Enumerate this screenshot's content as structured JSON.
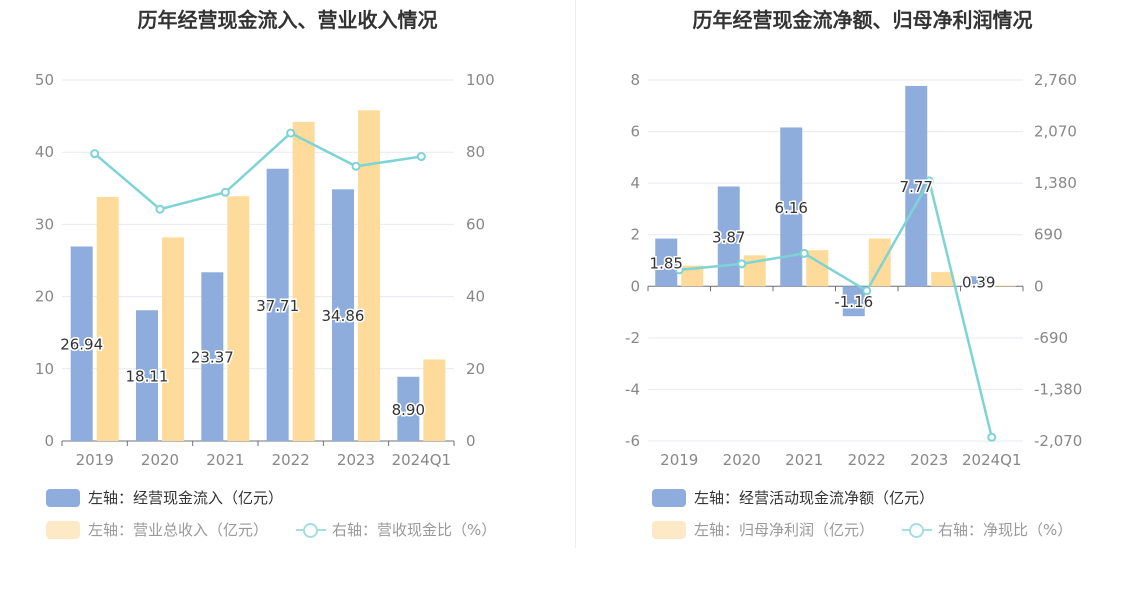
{
  "colors": {
    "bar_primary": "#8eaddc",
    "bar_secondary": "#fedb9b",
    "line": "#7ed3d6",
    "legend_active_text": "#333333",
    "legend_muted_text": "#999999",
    "legend_muted_swatch": "#fde9c6",
    "grid": "#e6e9f0",
    "axis_label": "#888888"
  },
  "chart_data": [
    {
      "type": "bar",
      "title": "历年经营现金流入、营业收入情况",
      "categories": [
        "2019",
        "2020",
        "2021",
        "2022",
        "2023",
        "2024Q1"
      ],
      "y_left": {
        "min": 0,
        "max": 50,
        "ticks": [
          "0",
          "10",
          "20",
          "30",
          "40",
          "50"
        ]
      },
      "y_right": {
        "min": 0,
        "max": 100,
        "ticks": [
          "0",
          "20",
          "40",
          "60",
          "80",
          "100"
        ]
      },
      "series": [
        {
          "name": "左轴：经营现金流入（亿元）",
          "type": "bar",
          "axis": "left",
          "values": [
            26.94,
            18.11,
            23.37,
            37.71,
            34.86,
            8.9
          ],
          "labels": [
            "26.94",
            "18.11",
            "23.37",
            "37.71",
            "34.86",
            "8.90"
          ]
        },
        {
          "name": "左轴：营业总收入（亿元）",
          "type": "bar",
          "axis": "left",
          "values": [
            33.8,
            28.2,
            33.9,
            44.2,
            45.8,
            11.3
          ]
        },
        {
          "name": "右轴：营收现金比（%）",
          "type": "line",
          "axis": "right",
          "values": [
            79.6,
            64.2,
            68.9,
            85.3,
            76.1,
            78.8
          ]
        }
      ],
      "legend": [
        {
          "label": "左轴：经营现金流入（亿元）",
          "kind": "bar",
          "state": "active"
        },
        {
          "label": "左轴：营业总收入（亿元）",
          "kind": "bar",
          "state": "muted"
        },
        {
          "label": "右轴：营收现金比（%）",
          "kind": "line",
          "state": "muted"
        }
      ]
    },
    {
      "type": "bar",
      "title": "历年经营现金流净额、归母净利润情况",
      "categories": [
        "2019",
        "2020",
        "2021",
        "2022",
        "2023",
        "2024Q1"
      ],
      "y_left": {
        "min": -6,
        "max": 8,
        "ticks": [
          "-6",
          "-4",
          "-2",
          "0",
          "2",
          "4",
          "6",
          "8"
        ]
      },
      "y_right": {
        "min": -2070,
        "max": 2760,
        "ticks": [
          "-2,070",
          "-1,380",
          "-690",
          "0",
          "690",
          "1,380",
          "2,070",
          "2,760"
        ]
      },
      "series": [
        {
          "name": "左轴：经营活动现金流净额（亿元）",
          "type": "bar",
          "axis": "left",
          "values": [
            1.85,
            3.87,
            6.16,
            -1.16,
            7.77,
            0.39
          ],
          "labels": [
            "1.85",
            "3.87",
            "6.16",
            "-1.16",
            "7.77",
            "0.39"
          ]
        },
        {
          "name": "左轴：归母净利润（亿元）",
          "type": "bar",
          "axis": "left",
          "values": [
            0.8,
            1.2,
            1.4,
            1.85,
            0.55,
            0.03
          ]
        },
        {
          "name": "右轴：净现比（%）",
          "type": "line",
          "axis": "right",
          "values": [
            220,
            300,
            440,
            -60,
            1410,
            -2020
          ]
        }
      ],
      "legend": [
        {
          "label": "左轴：经营活动现金流净额（亿元）",
          "kind": "bar",
          "state": "active"
        },
        {
          "label": "左轴：归母净利润（亿元）",
          "kind": "bar",
          "state": "muted"
        },
        {
          "label": "右轴：净现比（%）",
          "kind": "line",
          "state": "muted"
        }
      ]
    }
  ]
}
